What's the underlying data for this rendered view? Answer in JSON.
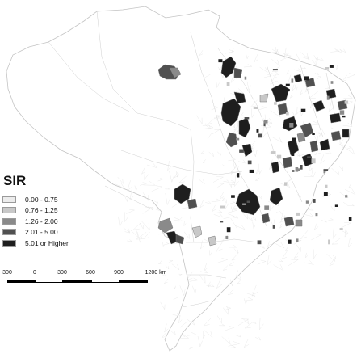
{
  "legend": {
    "title": "SIR",
    "items": [
      {
        "label": "0.00 - 0.75",
        "color": "#ececec"
      },
      {
        "label": "0.76 - 1.25",
        "color": "#c8c8c8"
      },
      {
        "label": "1.26 - 2.00",
        "color": "#8a8a8a"
      },
      {
        "label": "2.01 - 5.00",
        "color": "#505050"
      },
      {
        "label": "5.01 or Higher",
        "color": "#1e1e1e"
      }
    ]
  },
  "scalebar": {
    "labels": [
      "300",
      "0",
      "300",
      "600",
      "900",
      "1200 km"
    ]
  },
  "map": {
    "background_fill": "#ffffff",
    "border_color": "#c4c4c4"
  }
}
